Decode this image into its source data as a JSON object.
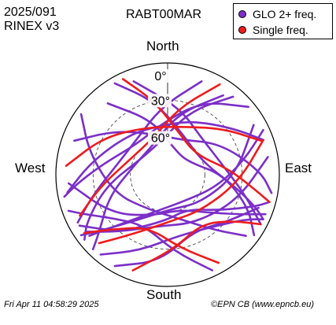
{
  "header": {
    "date": "2025/091",
    "format": "RINEX v3",
    "station": "RABT00MAR"
  },
  "legend": {
    "items": [
      {
        "label": "GLO 2+ freq.",
        "color": "#7b2fc8"
      },
      {
        "label": "Single freq.",
        "color": "#ee1c1c"
      }
    ]
  },
  "footer": {
    "timestamp": "Fri Apr 11 04:58:29 2025",
    "credit": "©EPN CB (www.epncb.eu)"
  },
  "chart_data": {
    "type": "skyplot",
    "compass": {
      "north": "North",
      "south": "South",
      "east": "East",
      "west": "West"
    },
    "elevation_labels": [
      "0°",
      "30°",
      "60°"
    ],
    "elevation_rings": [
      0,
      30,
      60
    ],
    "series": [
      {
        "name": "GLO 2+ freq.",
        "color": "#7b2fc8",
        "tracks": [
          [
            [
              -40,
              15
            ],
            [
              -15,
              45
            ],
            [
              20,
              70
            ],
            [
              60,
              70
            ],
            [
              90,
              45
            ],
            [
              112,
              20
            ],
            [
              125,
              5
            ]
          ],
          [
            [
              -70,
              10
            ],
            [
              -50,
              35
            ],
            [
              -20,
              55
            ],
            [
              20,
              60
            ],
            [
              60,
              40
            ],
            [
              88,
              15
            ],
            [
              100,
              5
            ]
          ],
          [
            [
              -120,
              8
            ],
            [
              -140,
              30
            ],
            [
              -175,
              52
            ],
            [
              150,
              58
            ],
            [
              125,
              40
            ],
            [
              110,
              15
            ],
            [
              105,
              5
            ]
          ],
          [
            [
              -140,
              6
            ],
            [
              -160,
              25
            ],
            [
              170,
              40
            ],
            [
              140,
              35
            ],
            [
              120,
              18
            ],
            [
              115,
              5
            ]
          ],
          [
            [
              40,
              8
            ],
            [
              20,
              35
            ],
            [
              -10,
              62
            ],
            [
              -60,
              65
            ],
            [
              -100,
              40
            ],
            [
              -120,
              15
            ],
            [
              -128,
              5
            ]
          ],
          [
            [
              60,
              10
            ],
            [
              90,
              35
            ],
            [
              130,
              55
            ],
            [
              175,
              62
            ],
            [
              -145,
              45
            ],
            [
              -130,
              20
            ],
            [
              -125,
              5
            ]
          ],
          [
            [
              -100,
              8
            ],
            [
              -80,
              28
            ],
            [
              -45,
              45
            ],
            [
              -10,
              50
            ],
            [
              25,
              42
            ],
            [
              55,
              25
            ],
            [
              70,
              8
            ]
          ],
          [
            [
              -95,
              10
            ],
            [
              -125,
              35
            ],
            [
              -160,
              55
            ],
            [
              160,
              60
            ],
            [
              130,
              42
            ],
            [
              118,
              22
            ],
            [
              112,
              5
            ]
          ],
          [
            [
              35,
              12
            ],
            [
              10,
              40
            ],
            [
              -25,
              63
            ],
            [
              -75,
              62
            ],
            [
              -110,
              40
            ],
            [
              -130,
              18
            ],
            [
              -135,
              5
            ]
          ],
          [
            [
              80,
              8
            ],
            [
              110,
              30
            ],
            [
              150,
              45
            ],
            [
              -170,
              48
            ],
            [
              -140,
              30
            ],
            [
              -125,
              10
            ]
          ],
          [
            [
              -30,
              5
            ],
            [
              -10,
              30
            ],
            [
              20,
              55
            ],
            [
              70,
              60
            ],
            [
              100,
              35
            ],
            [
              110,
              15
            ],
            [
              115,
              5
            ]
          ],
          [
            [
              50,
              5
            ],
            [
              25,
              25
            ],
            [
              -5,
              48
            ],
            [
              -45,
              55
            ],
            [
              -80,
              38
            ],
            [
              -95,
              18
            ],
            [
              -102,
              5
            ]
          ],
          [
            [
              -150,
              5
            ],
            [
              -175,
              20
            ],
            [
              155,
              40
            ],
            [
              130,
              30
            ],
            [
              110,
              12
            ]
          ],
          [
            [
              155,
              5
            ],
            [
              175,
              28
            ],
            [
              -155,
              45
            ],
            [
              -130,
              35
            ],
            [
              -115,
              15
            ],
            [
              -110,
              5
            ]
          ],
          [
            [
              -55,
              5
            ],
            [
              -75,
              25
            ],
            [
              -110,
              45
            ],
            [
              -150,
              58
            ],
            [
              170,
              55
            ],
            [
              140,
              32
            ],
            [
              128,
              10
            ]
          ],
          [
            [
              65,
              5
            ],
            [
              80,
              28
            ],
            [
              105,
              50
            ],
            [
              150,
              65
            ],
            [
              -160,
              58
            ],
            [
              -135,
              32
            ],
            [
              -128,
              10
            ]
          ],
          [
            [
              -20,
              10
            ],
            [
              10,
              35
            ],
            [
              45,
              50
            ],
            [
              80,
              45
            ],
            [
              105,
              25
            ],
            [
              118,
              5
            ]
          ],
          [
            [
              20,
              10
            ],
            [
              -5,
              35
            ],
            [
              -40,
              52
            ],
            [
              -80,
              48
            ],
            [
              -105,
              28
            ],
            [
              -118,
              8
            ]
          ]
        ]
      },
      {
        "name": "Single freq.",
        "color": "#ee1c1c",
        "tracks": [
          [
            [
              -25,
              5
            ],
            [
              -10,
              30
            ],
            [
              15,
              55
            ],
            [
              55,
              62
            ],
            [
              85,
              40
            ],
            [
              100,
              18
            ],
            [
              105,
              5
            ]
          ],
          [
            [
              -85,
              8
            ],
            [
              -60,
              30
            ],
            [
              -25,
              48
            ],
            [
              15,
              50
            ],
            [
              50,
              32
            ],
            [
              70,
              10
            ]
          ],
          [
            [
              30,
              6
            ],
            [
              10,
              35
            ],
            [
              -20,
              58
            ],
            [
              -65,
              58
            ],
            [
              -100,
              35
            ],
            [
              -115,
              12
            ]
          ],
          [
            [
              150,
              8
            ],
            [
              170,
              30
            ],
            [
              -160,
              45
            ],
            [
              -135,
              28
            ],
            [
              -125,
              8
            ]
          ],
          [
            [
              -160,
              8
            ],
            [
              175,
              30
            ],
            [
              145,
              42
            ],
            [
              125,
              25
            ],
            [
              118,
              5
            ]
          ],
          [
            [
              70,
              8
            ],
            [
              95,
              32
            ],
            [
              135,
              50
            ],
            [
              178,
              52
            ],
            [
              -150,
              35
            ],
            [
              -135,
              12
            ]
          ]
        ]
      }
    ]
  }
}
